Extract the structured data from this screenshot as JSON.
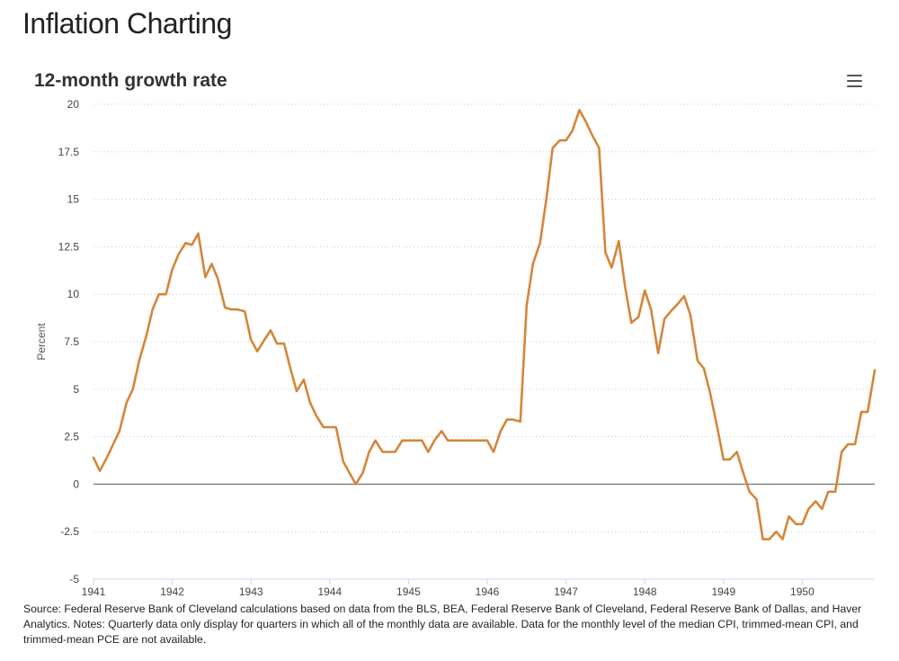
{
  "page": {
    "title": "Inflation Charting"
  },
  "menu_icon": "hamburger-menu-icon",
  "source_note": "Source: Federal Reserve Bank of Cleveland calculations based on data from the BLS, BEA, Federal Reserve Bank of Cleveland, Federal Reserve Bank of Dallas, and Haver Analytics. Notes: Quarterly data only display for quarters in which all of the monthly data are available. Data for the monthly level of the median CPI, trimmed-mean CPI, and trimmed-mean PCE are not available.",
  "chart_data": {
    "type": "line",
    "title": "12-month growth rate",
    "xlabel": "",
    "ylabel": "Percent",
    "ylim": [
      -5,
      20
    ],
    "xlim": [
      1941.0,
      1950.92
    ],
    "yticks": [
      "-5",
      "-2.5",
      "0",
      "2.5",
      "5",
      "7.5",
      "10",
      "12.5",
      "15",
      "17.5",
      "20"
    ],
    "xticks": [
      "1941",
      "1942",
      "1943",
      "1944",
      "1945",
      "1946",
      "1947",
      "1948",
      "1949",
      "1950"
    ],
    "grid": true,
    "zero_line": true,
    "line_color": "#D4863A",
    "series": [
      {
        "x": [
          1941.0,
          1941.08,
          1941.17,
          1941.25,
          1941.33,
          1941.42,
          1941.5,
          1941.58,
          1941.67,
          1941.75,
          1941.83,
          1941.92,
          1942.0,
          1942.08,
          1942.17,
          1942.25,
          1942.33,
          1942.42,
          1942.5,
          1942.58,
          1942.67,
          1942.75,
          1942.83,
          1942.92,
          1943.0,
          1943.08,
          1943.17,
          1943.25,
          1943.33,
          1943.42,
          1943.5,
          1943.58,
          1943.67,
          1943.75,
          1943.83,
          1943.92,
          1944.0,
          1944.08,
          1944.17,
          1944.25,
          1944.33,
          1944.42,
          1944.5,
          1944.58,
          1944.67,
          1944.75,
          1944.83,
          1944.92,
          1945.0,
          1945.08,
          1945.17,
          1945.25,
          1945.33,
          1945.42,
          1945.5,
          1945.58,
          1945.67,
          1945.75,
          1945.83,
          1945.92,
          1946.0,
          1946.08,
          1946.17,
          1946.25,
          1946.33,
          1946.42,
          1946.5,
          1946.58,
          1946.67,
          1946.75,
          1946.83,
          1946.92,
          1947.0,
          1947.08,
          1947.17,
          1947.25,
          1947.33,
          1947.42,
          1947.5,
          1947.58,
          1947.67,
          1947.75,
          1947.83,
          1947.92,
          1948.0,
          1948.08,
          1948.17,
          1948.25,
          1948.33,
          1948.42,
          1948.5,
          1948.58,
          1948.67,
          1948.75,
          1948.83,
          1948.92,
          1949.0,
          1949.08,
          1949.17,
          1949.25,
          1949.33,
          1949.42,
          1949.5,
          1949.58,
          1949.67,
          1949.75,
          1949.83,
          1949.92,
          1950.0,
          1950.08,
          1950.17,
          1950.25,
          1950.33,
          1950.42,
          1950.5,
          1950.58,
          1950.67,
          1950.75,
          1950.83,
          1950.92
        ],
        "values": [
          1.4,
          0.7,
          1.4,
          2.1,
          2.8,
          4.3,
          5.0,
          6.5,
          7.8,
          9.2,
          10.0,
          10.0,
          11.3,
          12.1,
          12.7,
          12.6,
          13.2,
          10.9,
          11.6,
          10.8,
          9.3,
          9.2,
          9.2,
          9.1,
          7.6,
          7.0,
          7.6,
          8.1,
          7.4,
          7.4,
          6.1,
          4.9,
          5.5,
          4.3,
          3.6,
          3.0,
          3.0,
          3.0,
          1.2,
          0.6,
          0.0,
          0.6,
          1.7,
          2.3,
          1.7,
          1.7,
          1.7,
          2.3,
          2.3,
          2.3,
          2.3,
          1.7,
          2.3,
          2.8,
          2.3,
          2.3,
          2.3,
          2.3,
          2.3,
          2.3,
          2.3,
          1.7,
          2.8,
          3.4,
          3.4,
          3.3,
          9.4,
          11.6,
          12.7,
          15.0,
          17.7,
          18.1,
          18.1,
          18.6,
          19.7,
          19.1,
          18.4,
          17.7,
          12.2,
          11.4,
          12.8,
          10.4,
          8.5,
          8.8,
          10.2,
          9.2,
          6.9,
          8.7,
          9.1,
          9.5,
          9.9,
          8.9,
          6.5,
          6.1,
          4.8,
          3.0,
          1.3,
          1.3,
          1.7,
          0.6,
          -0.4,
          -0.8,
          -2.9,
          -2.9,
          -2.5,
          -2.9,
          -1.7,
          -2.1,
          -2.1,
          -1.3,
          -0.9,
          -1.3,
          -0.4,
          -0.4,
          1.7,
          2.1,
          2.1,
          3.8,
          3.8,
          6.0
        ]
      }
    ]
  }
}
